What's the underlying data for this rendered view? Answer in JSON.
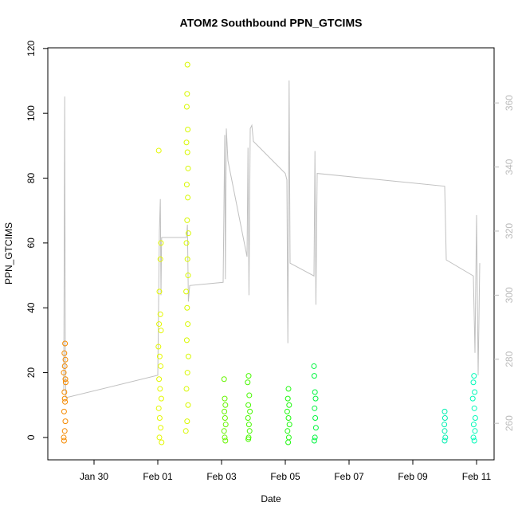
{
  "chart_data": {
    "type": "scatter",
    "title": "ATOM2 Southbound PPN_GTCIMS",
    "xlabel": "Date",
    "ylabel": "PPN_GTCIMS",
    "xlim": [
      -1.45,
      12.55
    ],
    "xticks": [
      {
        "value": 0,
        "label": "Jan 30"
      },
      {
        "value": 2,
        "label": "Feb 01"
      },
      {
        "value": 4,
        "label": "Feb 03"
      },
      {
        "value": 6,
        "label": "Feb 05"
      },
      {
        "value": 8,
        "label": "Feb 07"
      },
      {
        "value": 10,
        "label": "Feb 09"
      },
      {
        "value": 12,
        "label": "Feb 11"
      }
    ],
    "ylim": [
      -6.9,
      120.2
    ],
    "yticks": [
      0,
      20,
      40,
      60,
      80,
      100,
      120
    ],
    "y2lim": [
      248.6,
      377.2
    ],
    "y2ticks": [
      260,
      280,
      300,
      320,
      340,
      360
    ],
    "y2color": "#bbbbbb",
    "groups": [
      {
        "color": "#f58a00",
        "x": [
          -0.95,
          -0.92,
          -0.9,
          -0.94,
          -0.91,
          -0.93,
          -0.89,
          -0.95,
          -0.92,
          -0.9,
          -0.93,
          -0.91,
          -0.94,
          -0.92,
          -0.9
        ],
        "values": [
          0,
          2,
          5,
          8,
          11,
          14,
          17,
          20,
          22,
          24,
          26,
          29,
          -1,
          12,
          18
        ]
      },
      {
        "color": "#e4f800",
        "x": [
          2.03,
          2.05,
          2.08,
          2.1,
          2.02,
          2.06,
          2.09,
          2.04,
          2.07,
          2.11,
          2.03,
          2.06,
          2.09,
          2.05,
          2.12,
          2.08,
          2.1,
          2.04
        ],
        "values": [
          88.5,
          45,
          38,
          33,
          28,
          25,
          22,
          18,
          15,
          12,
          9,
          6,
          3,
          0,
          -1.5,
          55,
          60,
          35
        ]
      },
      {
        "color": "#d8f800",
        "x": [
          2.93,
          2.92,
          2.91,
          2.94,
          2.9,
          2.93,
          2.95,
          2.91,
          2.94,
          2.92,
          2.96,
          2.9,
          2.93,
          2.95,
          2.89,
          2.92,
          2.94,
          2.91,
          2.96,
          2.93,
          2.9,
          2.95,
          2.92,
          2.88
        ],
        "values": [
          115,
          106,
          102,
          95,
          91,
          88,
          83,
          78,
          74,
          67,
          63,
          60,
          55,
          50,
          45,
          40,
          35,
          30,
          25,
          20,
          15,
          10,
          5,
          2
        ]
      },
      {
        "color": "#66f500",
        "x": [
          4.08,
          4.1,
          4.12,
          4.09,
          4.11,
          4.13,
          4.08,
          4.1,
          4.12
        ],
        "values": [
          18,
          12,
          10,
          8,
          6,
          4,
          2,
          0,
          -1
        ]
      },
      {
        "color": "#48f800",
        "x": [
          4.85,
          4.82,
          4.87,
          4.84,
          4.89,
          4.83,
          4.86,
          4.88,
          4.85,
          4.84
        ],
        "values": [
          19,
          17,
          13,
          10,
          8,
          6,
          4,
          2,
          0,
          -0.5
        ]
      },
      {
        "color": "#20f810",
        "x": [
          6.1,
          6.08,
          6.12,
          6.06,
          6.1,
          6.13,
          6.07,
          6.11,
          6.09
        ],
        "values": [
          15,
          12,
          10,
          8,
          6,
          4,
          2,
          0,
          -1.5
        ]
      },
      {
        "color": "#00f540",
        "x": [
          6.9,
          6.91,
          6.93,
          6.95,
          6.92,
          6.94,
          6.96,
          6.93,
          6.91
        ],
        "values": [
          22,
          19,
          14,
          12,
          9,
          6,
          3,
          0,
          -1
        ]
      },
      {
        "color": "#00eeb0",
        "x": [
          11.0,
          11.01,
          10.99,
          11.0,
          11.02,
          11.0
        ],
        "values": [
          8,
          6,
          4,
          2,
          0,
          -1
        ]
      },
      {
        "color": "#00fab8",
        "x": [
          11.92,
          11.9,
          11.94,
          11.88,
          11.93,
          11.96,
          11.91,
          11.95,
          11.9,
          11.93
        ],
        "values": [
          19,
          17,
          14,
          12,
          9,
          6,
          4,
          2,
          0,
          -1
        ]
      }
    ],
    "line": {
      "color": "#c0c0c0",
      "axis": "y2",
      "x": [
        -0.95,
        -0.92,
        -0.9,
        -0.88,
        2.0,
        2.05,
        2.08,
        2.1,
        2.12,
        2.15,
        2.9,
        2.93,
        2.96,
        3.0,
        4.05,
        4.1,
        4.12,
        4.15,
        4.2,
        4.8,
        4.83,
        4.86,
        4.9,
        4.95,
        5.0,
        6.0,
        6.05,
        6.08,
        6.12,
        6.15,
        6.9,
        6.93,
        6.96,
        7.0,
        11.0,
        11.05,
        11.9,
        11.95,
        12.0,
        12.05,
        12.1
      ],
      "values": [
        270,
        362,
        275,
        268,
        275,
        320,
        330,
        300,
        318,
        318,
        318,
        322,
        298,
        303,
        304,
        350,
        305,
        352,
        342,
        312,
        346,
        300,
        352,
        353,
        348,
        338,
        336,
        285,
        367,
        310,
        306,
        345,
        297,
        338,
        334,
        311,
        306,
        282,
        325,
        275,
        310
      ]
    }
  }
}
